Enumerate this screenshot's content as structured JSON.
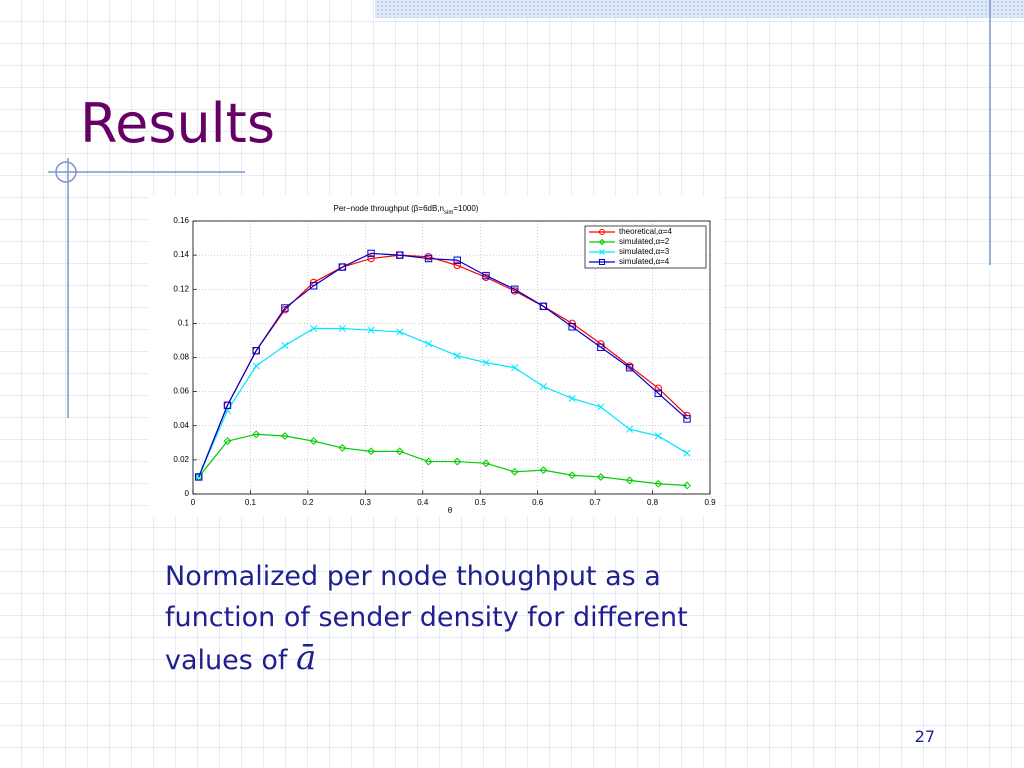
{
  "slide": {
    "title": "Results",
    "caption": "Normalized per node thoughput as a function of sender density for different values of",
    "caption_symbol": "ā",
    "page_number": "27"
  },
  "chart_data": {
    "type": "line",
    "title": [
      "Per−node throughput (β=6dB,n",
      "sim",
      "=1000)"
    ],
    "x_label": "θ",
    "x": [
      0.01,
      0.06,
      0.11,
      0.16,
      0.21,
      0.26,
      0.31,
      0.36,
      0.41,
      0.46,
      0.51,
      0.56,
      0.61,
      0.66,
      0.71,
      0.76,
      0.81,
      0.86
    ],
    "series": [
      {
        "name": "theoretical,α=4",
        "color": "#ff0000",
        "marker": "circle",
        "values": [
          0.01,
          0.052,
          0.084,
          0.108,
          0.124,
          0.133,
          0.138,
          0.14,
          0.139,
          0.134,
          0.127,
          0.119,
          0.11,
          0.1,
          0.088,
          0.075,
          0.062,
          0.046
        ]
      },
      {
        "name": "simulated,α=2",
        "color": "#00cc00",
        "marker": "diamond",
        "values": [
          0.01,
          0.031,
          0.035,
          0.034,
          0.031,
          0.027,
          0.025,
          0.025,
          0.019,
          0.019,
          0.018,
          0.013,
          0.014,
          0.011,
          0.01,
          0.008,
          0.006,
          0.005
        ]
      },
      {
        "name": "simulated,α=3",
        "color": "#00e5ff",
        "marker": "x",
        "values": [
          0.01,
          0.049,
          0.075,
          0.087,
          0.097,
          0.097,
          0.096,
          0.095,
          0.088,
          0.081,
          0.077,
          0.074,
          0.063,
          0.056,
          0.051,
          0.038,
          0.034,
          0.024
        ]
      },
      {
        "name": "simulated,α=4",
        "color": "#0000cc",
        "marker": "square",
        "values": [
          0.01,
          0.052,
          0.084,
          0.109,
          0.122,
          0.133,
          0.141,
          0.14,
          0.138,
          0.137,
          0.128,
          0.12,
          0.11,
          0.098,
          0.086,
          0.074,
          0.059,
          0.044
        ]
      }
    ],
    "xlim": [
      0,
      0.9
    ],
    "xticks": [
      0,
      0.1,
      0.2,
      0.3,
      0.4,
      0.5,
      0.6,
      0.7,
      0.8,
      0.9
    ],
    "ylim": [
      0,
      0.16
    ],
    "yticks": [
      0,
      0.02,
      0.04,
      0.06,
      0.08,
      0.1,
      0.12,
      0.14,
      0.16
    ],
    "grid": true,
    "legend": "upper right"
  }
}
